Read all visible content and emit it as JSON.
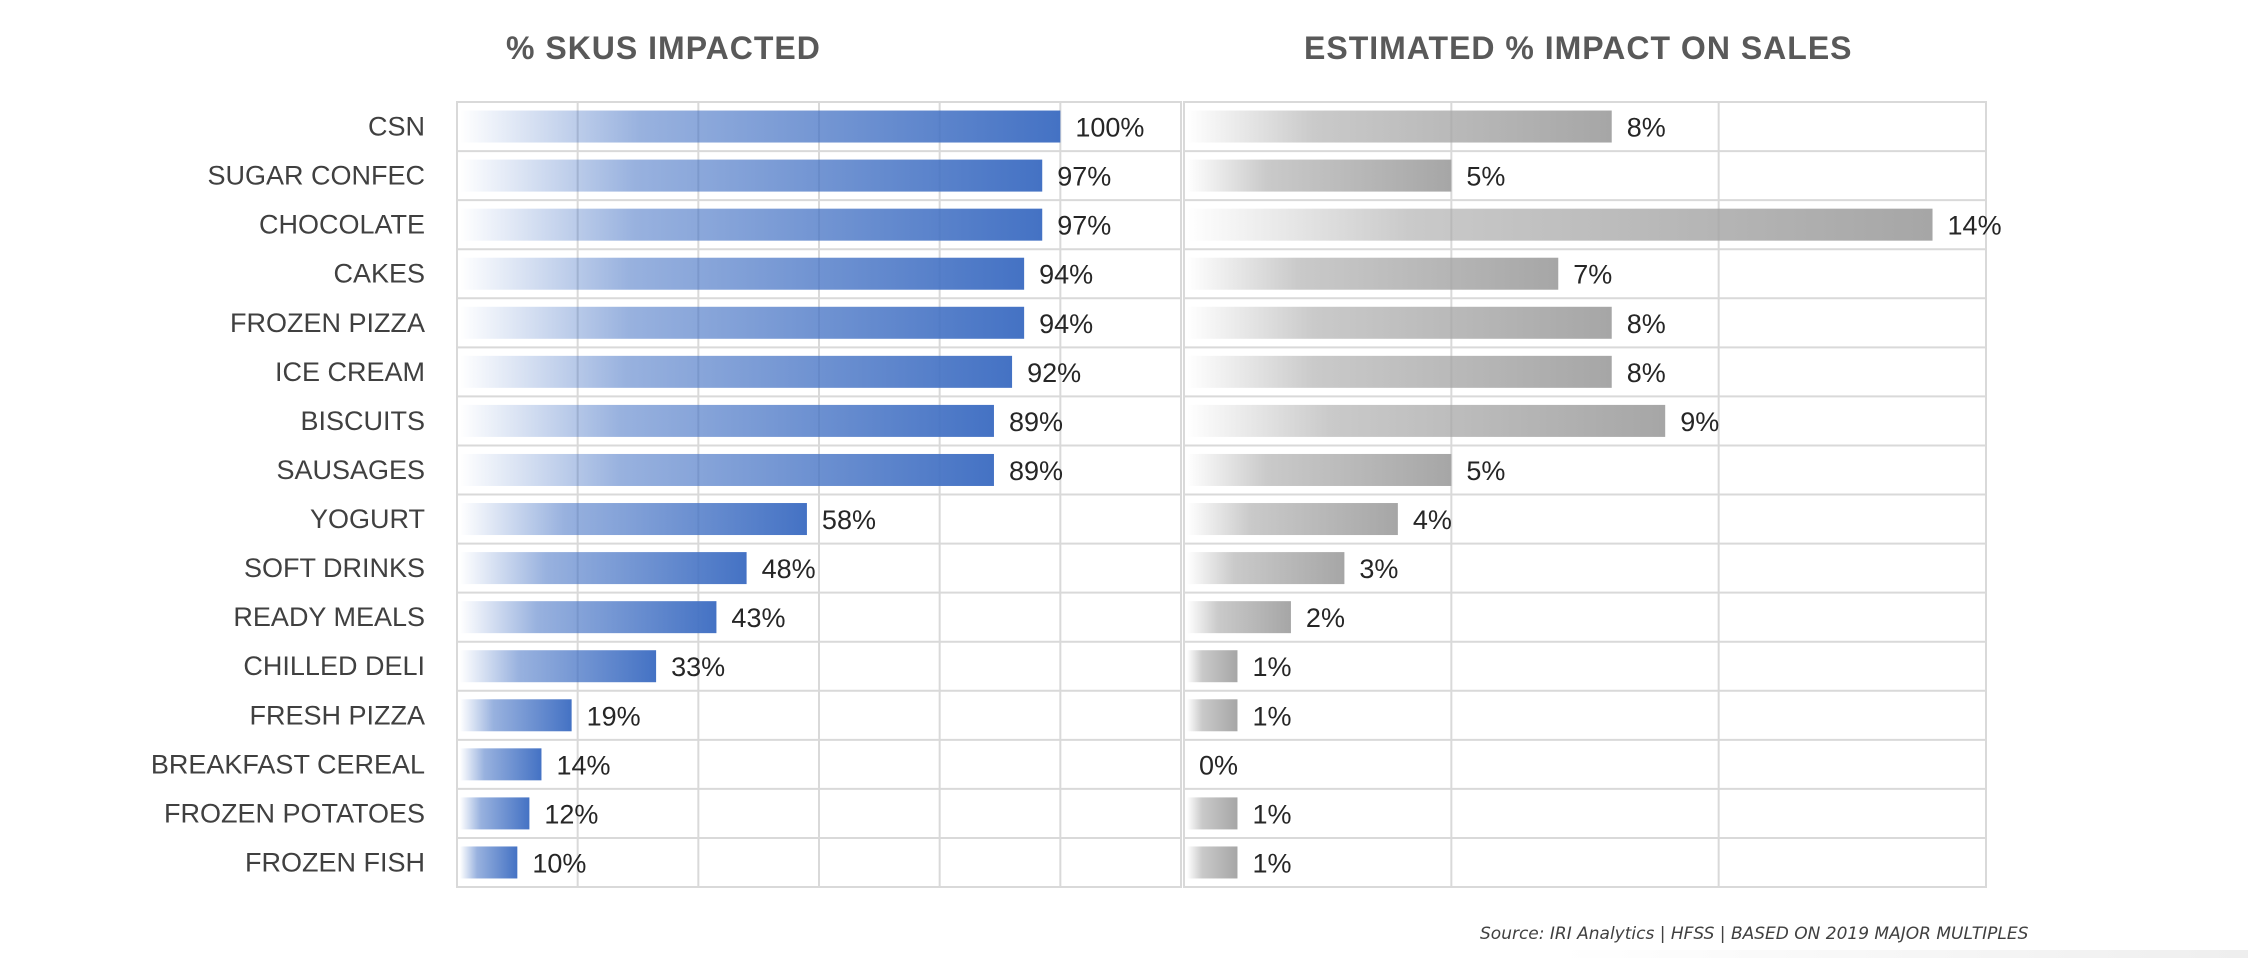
{
  "chart_data": [
    {
      "type": "bar",
      "orientation": "horizontal",
      "title": "% SKUS IMPACTED",
      "categories": [
        "CSN",
        "SUGAR CONFEC",
        "CHOCOLATE",
        "CAKES",
        "FROZEN PIZZA",
        "ICE CREAM",
        "BISCUITS",
        "SAUSAGES",
        "YOGURT",
        "SOFT DRINKS",
        "READY MEALS",
        "CHILLED DELI",
        "FRESH PIZZA",
        "BREAKFAST CEREAL",
        "FROZEN POTATOES",
        "FROZEN FISH"
      ],
      "values": [
        100,
        97,
        97,
        94,
        94,
        92,
        89,
        89,
        58,
        48,
        43,
        33,
        19,
        14,
        12,
        10
      ],
      "labels": [
        "100%",
        "97%",
        "97%",
        "94%",
        "94%",
        "92%",
        "89%",
        "89%",
        "58%",
        "48%",
        "43%",
        "33%",
        "19%",
        "14%",
        "12%",
        "10%"
      ],
      "xlim": [
        0,
        120
      ],
      "grid": true,
      "color": "#4472C4"
    },
    {
      "type": "bar",
      "orientation": "horizontal",
      "title": "ESTIMATED % IMPACT ON SALES",
      "categories": [
        "CSN",
        "SUGAR CONFEC",
        "CHOCOLATE",
        "CAKES",
        "FROZEN PIZZA",
        "ICE CREAM",
        "BISCUITS",
        "SAUSAGES",
        "YOGURT",
        "SOFT DRINKS",
        "READY MEALS",
        "CHILLED DELI",
        "FRESH PIZZA",
        "BREAKFAST CEREAL",
        "FROZEN POTATOES",
        "FROZEN FISH"
      ],
      "values": [
        8,
        5,
        14,
        7,
        8,
        8,
        9,
        5,
        4,
        3,
        2,
        1,
        1,
        0,
        1,
        1
      ],
      "labels": [
        "8%",
        "5%",
        "14%",
        "7%",
        "8%",
        "8%",
        "9%",
        "5%",
        "4%",
        "3%",
        "2%",
        "1%",
        "1%",
        "0%",
        "1%",
        "1%"
      ],
      "xlim": [
        0,
        15
      ],
      "grid": true,
      "color": "#A6A6A6"
    }
  ],
  "source_text": "Source: IRI Analytics | HFSS | BASED ON 2019 MAJOR MULTIPLES"
}
